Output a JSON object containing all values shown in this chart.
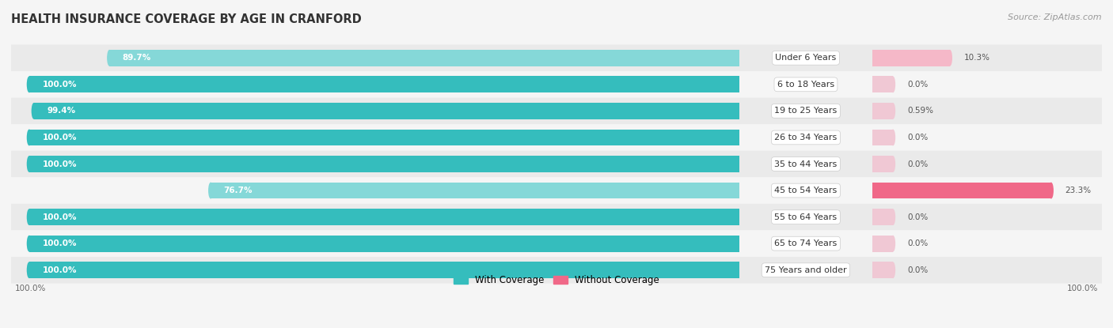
{
  "title": "HEALTH INSURANCE COVERAGE BY AGE IN CRANFORD",
  "source": "Source: ZipAtlas.com",
  "categories": [
    "Under 6 Years",
    "6 to 18 Years",
    "19 to 25 Years",
    "26 to 34 Years",
    "35 to 44 Years",
    "45 to 54 Years",
    "55 to 64 Years",
    "65 to 74 Years",
    "75 Years and older"
  ],
  "with_coverage": [
    89.7,
    100.0,
    99.4,
    100.0,
    100.0,
    76.7,
    100.0,
    100.0,
    100.0
  ],
  "without_coverage": [
    10.3,
    0.0,
    0.59,
    0.0,
    0.0,
    23.3,
    0.0,
    0.0,
    0.0
  ],
  "with_labels": [
    "89.7%",
    "100.0%",
    "99.4%",
    "100.0%",
    "100.0%",
    "76.7%",
    "100.0%",
    "100.0%",
    "100.0%"
  ],
  "without_labels": [
    "10.3%",
    "0.0%",
    "0.59%",
    "0.0%",
    "0.0%",
    "23.3%",
    "0.0%",
    "0.0%",
    "0.0%"
  ],
  "color_with_full": "#35BDBD",
  "color_with_light": "#85D8D8",
  "color_without_full": "#F06888",
  "color_without_light": "#F5B8C8",
  "color_without_tiny": "#F0C8D4",
  "row_colors": [
    "#EAEAEA",
    "#F5F5F5"
  ],
  "bg_color": "#F5F5F5",
  "legend_with": "With Coverage",
  "legend_without": "Without Coverage",
  "figsize": [
    14.06,
    4.15
  ],
  "dpi": 100
}
